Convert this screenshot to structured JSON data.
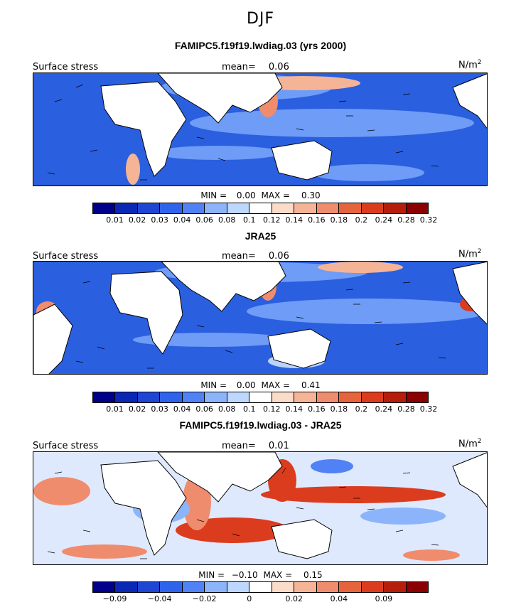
{
  "season": "DJF",
  "panels": [
    {
      "title": "FAMIPC5.f19f19.lwdiag.03 (yrs 2000)",
      "left_label": "Surface stress",
      "mean_label": "mean=",
      "mean_value": "0.06",
      "units": "N/m",
      "units_sup": "2",
      "min_label": "MIN =",
      "min_value": "0.00",
      "max_label": "MAX =",
      "max_value": "0.30",
      "colorbar_ticks": [
        "0.01",
        "0.02",
        "0.03",
        "0.04",
        "0.06",
        "0.08",
        "0.1",
        "0.12",
        "0.14",
        "0.16",
        "0.18",
        "0.2",
        "0.24",
        "0.28",
        "0.32"
      ]
    },
    {
      "title": "JRA25",
      "left_label": "Surface stress",
      "mean_label": "mean=",
      "mean_value": "0.06",
      "units": "N/m",
      "units_sup": "2",
      "min_label": "MIN =",
      "min_value": "0.00",
      "max_label": "MAX =",
      "max_value": "0.41",
      "colorbar_ticks": [
        "0.01",
        "0.02",
        "0.03",
        "0.04",
        "0.06",
        "0.08",
        "0.1",
        "0.12",
        "0.14",
        "0.16",
        "0.18",
        "0.2",
        "0.24",
        "0.28",
        "0.32"
      ]
    },
    {
      "title": "FAMIPC5.f19f19.lwdiag.03 - JRA25",
      "left_label": "Surface stress",
      "mean_label": "mean=",
      "mean_value": "0.01",
      "units": "N/m",
      "units_sup": "2",
      "min_label": "MIN =",
      "min_value": "−0.10",
      "max_label": "MAX =",
      "max_value": "0.15",
      "colorbar_ticks": [
        "−0.09",
        "−0.04",
        "−0.02",
        "0",
        "0.02",
        "0.04",
        "0.09"
      ]
    }
  ],
  "colorbar_colors": [
    "#00008b",
    "#0a28b4",
    "#1e46d2",
    "#2d64eb",
    "#5082f5",
    "#8cb4fa",
    "#bed7ff",
    "#ffffff",
    "#fadcc8",
    "#f5b496",
    "#f08c6e",
    "#e6643c",
    "#dc3c1e",
    "#b41e0a",
    "#8b0000"
  ],
  "map_colors": {
    "ocean_low": "#2a5fe0",
    "ocean_mid": "#6e9cf6",
    "ocean_light": "#bcd4fb",
    "warm": "#f08c6e",
    "hot": "#dc3c1e",
    "land": "#ffffff"
  }
}
